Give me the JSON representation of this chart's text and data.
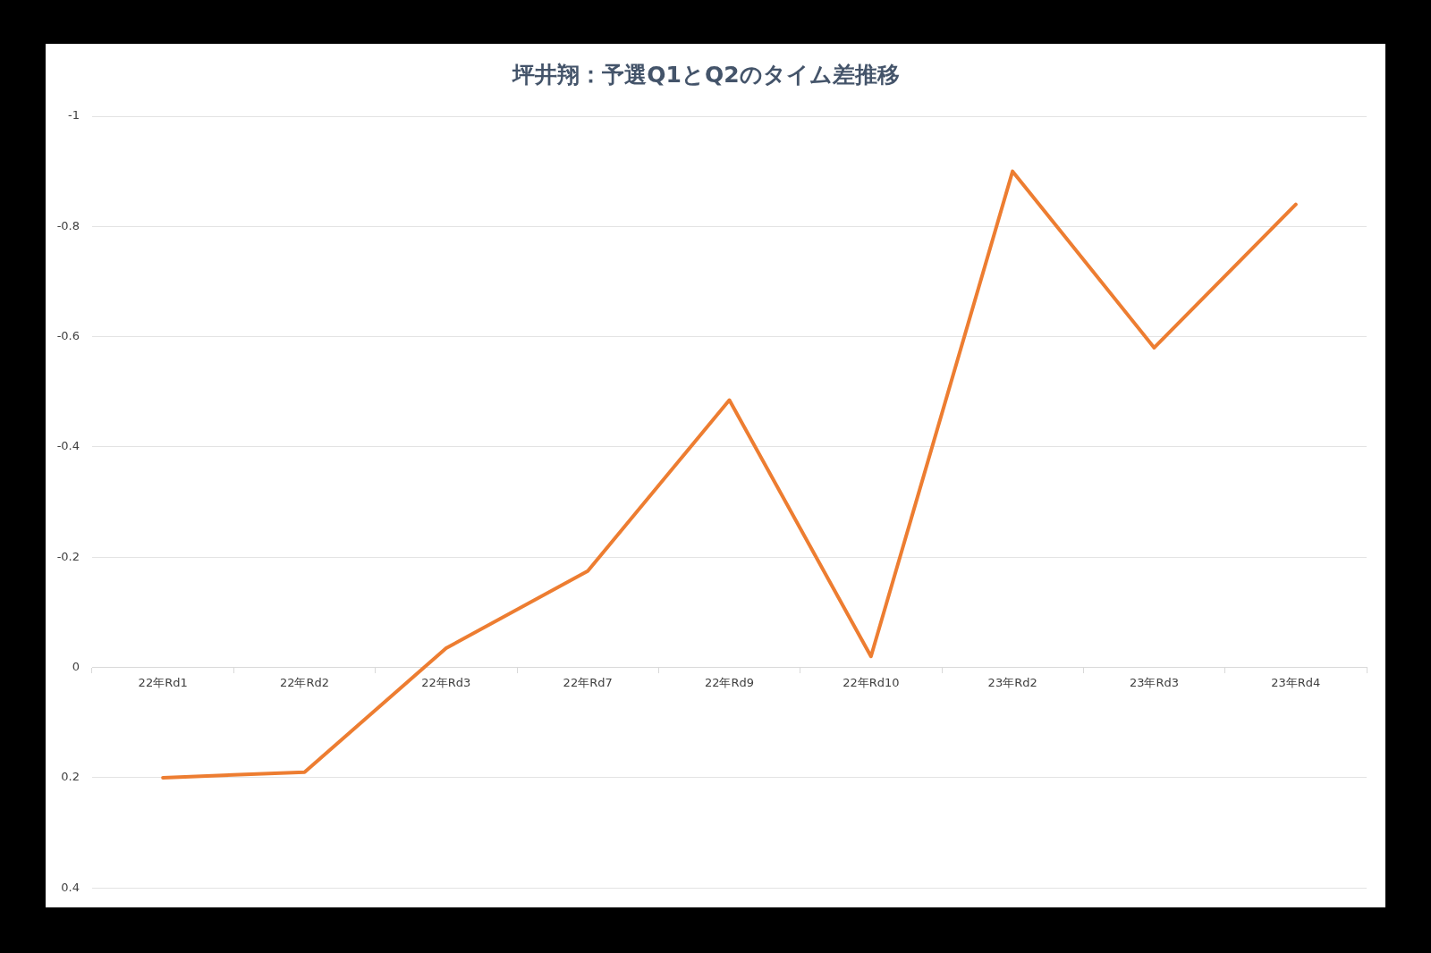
{
  "chart_data": {
    "type": "line",
    "title": "坪井翔：予選Q1とQ2のタイム差推移",
    "categories": [
      "22年Rd1",
      "22年Rd2",
      "22年Rd3",
      "22年Rd7",
      "22年Rd9",
      "22年Rd10",
      "23年Rd2",
      "23年Rd3",
      "23年Rd4"
    ],
    "values": [
      0.2,
      0.19,
      -0.035,
      -0.175,
      -0.485,
      -0.02,
      -0.9,
      -0.58,
      -0.84
    ],
    "color": "#ed7d31",
    "ylim": [
      0.4,
      -1
    ],
    "yticks": [
      0.4,
      0.2,
      0,
      -0.2,
      -0.4,
      -0.6,
      -0.8,
      -1
    ],
    "grid": "y"
  }
}
